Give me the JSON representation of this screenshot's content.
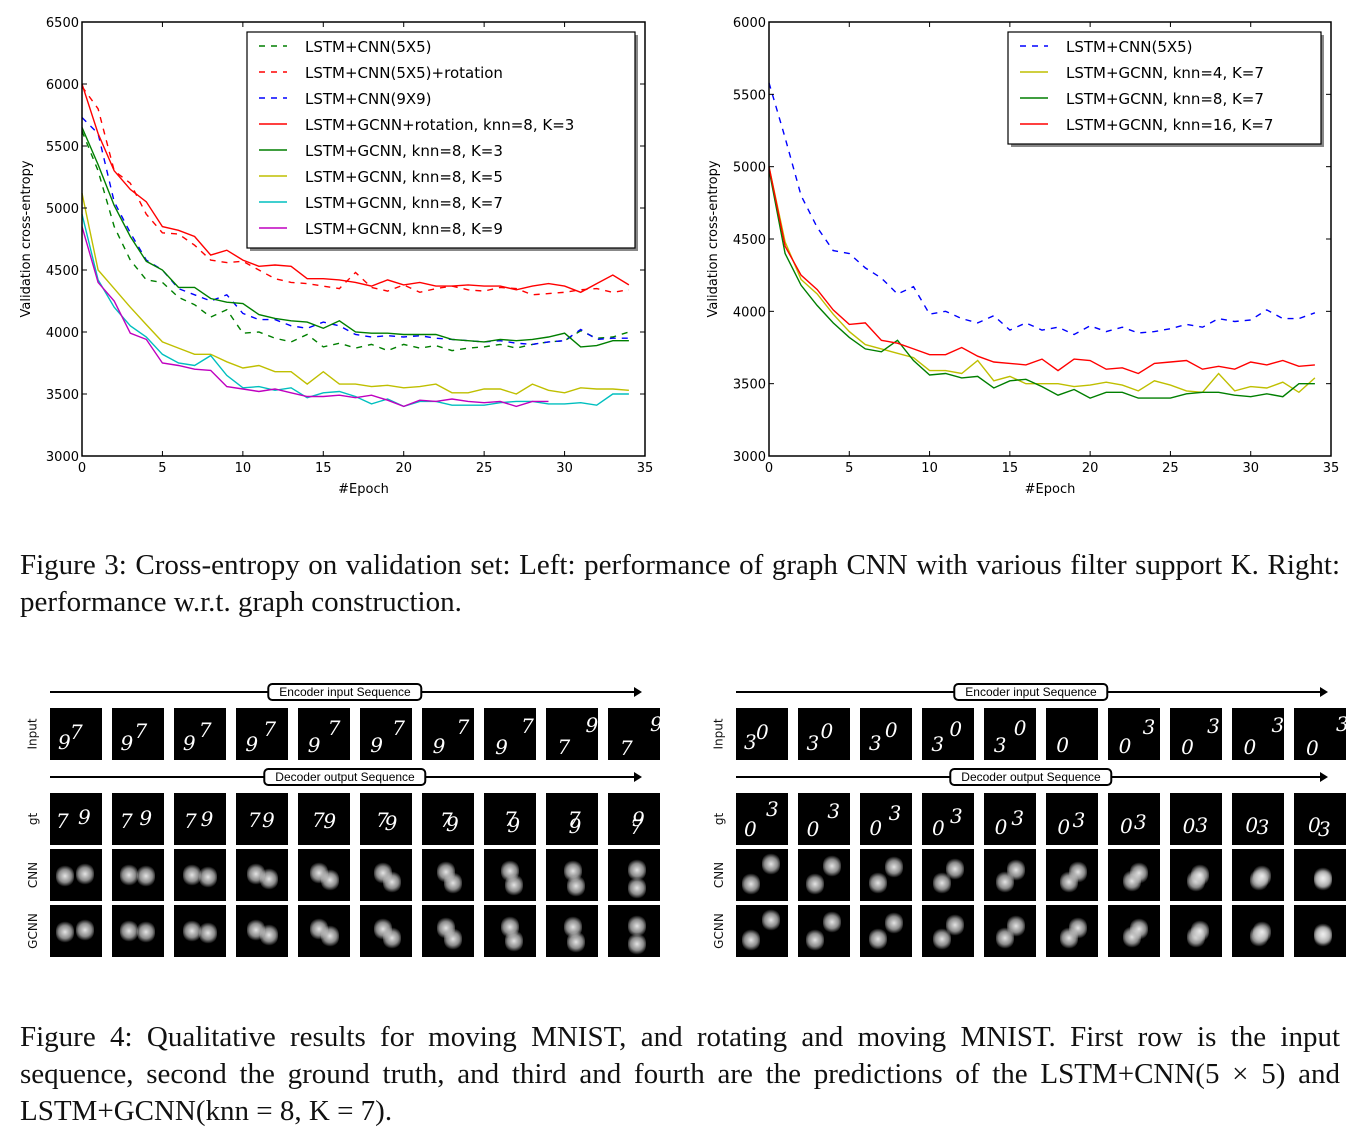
{
  "chart_data": [
    {
      "type": "line",
      "title": "",
      "xlabel": "#Epoch",
      "ylabel": "Validation cross-entropy",
      "xlim": [
        0,
        35
      ],
      "ylim": [
        3000,
        6500
      ],
      "xticks": [
        0,
        5,
        10,
        15,
        20,
        25,
        30,
        35
      ],
      "yticks": [
        3000,
        3500,
        4000,
        4500,
        5000,
        5500,
        6000,
        6500
      ],
      "grid": false,
      "legend_position": "top-right",
      "series": [
        {
          "name": "LSTM+CNN(5X5)",
          "color": "#007f00",
          "dash": true,
          "x": [
            0,
            1,
            2,
            3,
            4,
            5,
            6,
            7,
            8,
            9,
            10,
            11,
            12,
            13,
            14,
            15,
            16,
            17,
            18,
            19,
            20,
            21,
            22,
            23,
            24,
            25,
            26,
            27,
            28,
            29,
            30,
            31,
            32,
            33,
            34
          ],
          "y": [
            5620,
            5300,
            4850,
            4580,
            4420,
            4400,
            4280,
            4220,
            4120,
            4180,
            3990,
            4000,
            3950,
            3920,
            3980,
            3880,
            3910,
            3870,
            3900,
            3850,
            3900,
            3870,
            3890,
            3850,
            3870,
            3880,
            3900,
            3870,
            3900,
            3920,
            3930,
            4010,
            3950,
            3960,
            4000
          ]
        },
        {
          "name": "LSTM+CNN(5X5)+rotation",
          "color": "#ff0000",
          "dash": true,
          "x": [
            0,
            1,
            2,
            3,
            4,
            5,
            6,
            7,
            8,
            9,
            10,
            11,
            12,
            13,
            14,
            15,
            16,
            17,
            18,
            19,
            20,
            21,
            22,
            23,
            24,
            25,
            26,
            27,
            28,
            29,
            30,
            31,
            32,
            33,
            34
          ],
          "y": [
            5980,
            5800,
            5300,
            5200,
            4950,
            4800,
            4790,
            4700,
            4580,
            4560,
            4570,
            4500,
            4430,
            4400,
            4390,
            4370,
            4350,
            4480,
            4360,
            4330,
            4380,
            4320,
            4350,
            4370,
            4340,
            4330,
            4360,
            4350,
            4300,
            4310,
            4320,
            4340,
            4350,
            4320,
            4340
          ]
        },
        {
          "name": "LSTM+CNN(9X9)",
          "color": "#0000ff",
          "dash": true,
          "x": [
            0,
            1,
            2,
            3,
            4,
            5,
            6,
            7,
            8,
            9,
            10,
            11,
            12,
            13,
            14,
            15,
            16,
            17,
            18,
            19,
            20,
            21,
            22,
            23,
            24,
            25,
            26,
            27,
            28,
            29,
            30,
            31,
            32,
            33,
            34
          ],
          "y": [
            5730,
            5600,
            5050,
            4800,
            4580,
            4500,
            4350,
            4300,
            4250,
            4300,
            4150,
            4100,
            4100,
            4050,
            4030,
            4080,
            4050,
            3980,
            3960,
            3970,
            3960,
            3970,
            3950,
            3940,
            3930,
            3920,
            3930,
            3910,
            3900,
            3920,
            3930,
            4020,
            3940,
            3950,
            3950
          ]
        },
        {
          "name": "LSTM+GCNN+rotation, knn=8, K=3",
          "color": "#ff0000",
          "dash": false,
          "x": [
            0,
            1,
            2,
            3,
            4,
            5,
            6,
            7,
            8,
            9,
            10,
            11,
            12,
            13,
            14,
            15,
            16,
            17,
            18,
            19,
            20,
            21,
            22,
            23,
            24,
            25,
            26,
            27,
            28,
            29,
            30,
            31,
            32,
            33,
            34
          ],
          "y": [
            6000,
            5600,
            5300,
            5150,
            5050,
            4850,
            4820,
            4770,
            4620,
            4660,
            4580,
            4530,
            4540,
            4530,
            4430,
            4430,
            4420,
            4400,
            4370,
            4420,
            4380,
            4400,
            4370,
            4370,
            4380,
            4370,
            4370,
            4340,
            4370,
            4390,
            4370,
            4320,
            4390,
            4460,
            4380
          ]
        },
        {
          "name": "LSTM+GCNN, knn=8, K=3",
          "color": "#007f00",
          "dash": false,
          "x": [
            0,
            1,
            2,
            3,
            4,
            5,
            6,
            7,
            8,
            9,
            10,
            11,
            12,
            13,
            14,
            15,
            16,
            17,
            18,
            19,
            20,
            21,
            22,
            23,
            24,
            25,
            26,
            27,
            28,
            29,
            30,
            31,
            32,
            33,
            34
          ],
          "y": [
            5650,
            5350,
            5020,
            4770,
            4570,
            4500,
            4360,
            4360,
            4270,
            4240,
            4230,
            4140,
            4110,
            4090,
            4080,
            4030,
            4090,
            4000,
            3990,
            3990,
            3980,
            3980,
            3980,
            3940,
            3930,
            3920,
            3940,
            3930,
            3940,
            3960,
            3990,
            3880,
            3890,
            3930,
            3930
          ]
        },
        {
          "name": "LSTM+GCNN, knn=8, K=5",
          "color": "#bfbf00",
          "dash": false,
          "x": [
            0,
            1,
            2,
            3,
            4,
            5,
            6,
            7,
            8,
            9,
            10,
            11,
            12,
            13,
            14,
            15,
            16,
            17,
            18,
            19,
            20,
            21,
            22,
            23,
            24,
            25,
            26,
            27,
            28,
            29,
            30,
            31,
            32,
            33,
            34
          ],
          "y": [
            5120,
            4500,
            4350,
            4200,
            4060,
            3920,
            3870,
            3820,
            3820,
            3760,
            3710,
            3730,
            3680,
            3680,
            3580,
            3680,
            3580,
            3580,
            3560,
            3570,
            3550,
            3560,
            3580,
            3510,
            3510,
            3540,
            3540,
            3500,
            3580,
            3530,
            3510,
            3550,
            3540,
            3540,
            3530
          ]
        },
        {
          "name": "LSTM+GCNN, knn=8, K=7",
          "color": "#00bfbf",
          "dash": false,
          "x": [
            0,
            1,
            2,
            3,
            4,
            5,
            6,
            7,
            8,
            9,
            10,
            11,
            12,
            13,
            14,
            15,
            16,
            17,
            18,
            19,
            20,
            21,
            22,
            23,
            24,
            25,
            26,
            27,
            28,
            29,
            30,
            31,
            32,
            33,
            34
          ],
          "y": [
            4950,
            4420,
            4200,
            4050,
            3960,
            3820,
            3750,
            3730,
            3810,
            3650,
            3550,
            3560,
            3530,
            3550,
            3470,
            3510,
            3520,
            3480,
            3420,
            3460,
            3400,
            3440,
            3440,
            3410,
            3410,
            3410,
            3430,
            3440,
            3440,
            3420,
            3420,
            3430,
            3410,
            3500,
            3500
          ]
        },
        {
          "name": "LSTM+GCNN, knn=8, K=9",
          "color": "#bf00bf",
          "dash": false,
          "x": [
            0,
            1,
            2,
            3,
            4,
            5,
            6,
            7,
            8,
            9,
            10,
            11,
            12,
            13,
            14,
            15,
            16,
            17,
            18,
            19,
            20,
            21,
            22,
            23,
            24,
            25,
            26,
            27,
            28,
            29
          ],
          "y": [
            4850,
            4400,
            4250,
            3990,
            3940,
            3750,
            3730,
            3700,
            3690,
            3560,
            3540,
            3520,
            3540,
            3510,
            3480,
            3480,
            3490,
            3470,
            3490,
            3450,
            3400,
            3450,
            3440,
            3460,
            3440,
            3430,
            3440,
            3400,
            3440,
            3440
          ]
        }
      ]
    },
    {
      "type": "line",
      "title": "",
      "xlabel": "#Epoch",
      "ylabel": "Validation cross-entropy",
      "xlim": [
        0,
        35
      ],
      "ylim": [
        3000,
        6000
      ],
      "xticks": [
        0,
        5,
        10,
        15,
        20,
        25,
        30,
        35
      ],
      "yticks": [
        3000,
        3500,
        4000,
        4500,
        5000,
        5500,
        6000
      ],
      "grid": false,
      "legend_position": "top-right",
      "series": [
        {
          "name": "LSTM+CNN(5X5)",
          "color": "#0000ff",
          "dash": true,
          "x": [
            0,
            1,
            2,
            3,
            4,
            5,
            6,
            7,
            8,
            9,
            10,
            11,
            12,
            13,
            14,
            15,
            16,
            17,
            18,
            19,
            20,
            21,
            22,
            23,
            24,
            25,
            26,
            27,
            28,
            29,
            30,
            31,
            32,
            33,
            34
          ],
          "y": [
            5580,
            5200,
            4800,
            4580,
            4420,
            4400,
            4300,
            4230,
            4120,
            4170,
            3980,
            4000,
            3950,
            3920,
            3970,
            3870,
            3920,
            3870,
            3890,
            3840,
            3900,
            3860,
            3890,
            3850,
            3860,
            3880,
            3910,
            3890,
            3950,
            3930,
            3940,
            4010,
            3950,
            3950,
            3990
          ]
        },
        {
          "name": "LSTM+GCNN, knn=4, K=7",
          "color": "#bfbf00",
          "dash": false,
          "x": [
            0,
            1,
            2,
            3,
            4,
            5,
            6,
            7,
            8,
            9,
            10,
            11,
            12,
            13,
            14,
            15,
            16,
            17,
            18,
            19,
            20,
            21,
            22,
            23,
            24,
            25,
            26,
            27,
            28,
            29,
            30,
            31,
            32,
            33,
            34
          ],
          "y": [
            5000,
            4480,
            4220,
            4120,
            3980,
            3860,
            3770,
            3740,
            3710,
            3680,
            3590,
            3590,
            3570,
            3660,
            3520,
            3550,
            3500,
            3500,
            3500,
            3480,
            3490,
            3510,
            3490,
            3450,
            3520,
            3490,
            3450,
            3440,
            3570,
            3450,
            3480,
            3470,
            3510,
            3440,
            3540
          ]
        },
        {
          "name": "LSTM+GCNN, knn=8, K=7",
          "color": "#007f00",
          "dash": false,
          "x": [
            0,
            1,
            2,
            3,
            4,
            5,
            6,
            7,
            8,
            9,
            10,
            11,
            12,
            13,
            14,
            15,
            16,
            17,
            18,
            19,
            20,
            21,
            22,
            23,
            24,
            25,
            26,
            27,
            28,
            29,
            30,
            31,
            32,
            33,
            34
          ],
          "y": [
            4980,
            4400,
            4180,
            4040,
            3920,
            3820,
            3740,
            3720,
            3800,
            3660,
            3560,
            3570,
            3540,
            3550,
            3470,
            3520,
            3530,
            3480,
            3420,
            3460,
            3400,
            3440,
            3440,
            3400,
            3400,
            3400,
            3430,
            3440,
            3440,
            3420,
            3410,
            3430,
            3410,
            3500,
            3500
          ]
        },
        {
          "name": "LSTM+GCNN, knn=16, K=7",
          "color": "#ff0000",
          "dash": false,
          "x": [
            0,
            1,
            2,
            3,
            4,
            5,
            6,
            7,
            8,
            9,
            10,
            11,
            12,
            13,
            14,
            15,
            16,
            17,
            18,
            19,
            20,
            21,
            22,
            23,
            24,
            25,
            26,
            27,
            28,
            29,
            30,
            31,
            32,
            33,
            34
          ],
          "y": [
            5000,
            4450,
            4250,
            4150,
            4010,
            3910,
            3920,
            3800,
            3780,
            3740,
            3700,
            3700,
            3750,
            3690,
            3650,
            3640,
            3630,
            3670,
            3590,
            3670,
            3660,
            3600,
            3610,
            3570,
            3640,
            3650,
            3660,
            3600,
            3620,
            3600,
            3650,
            3630,
            3660,
            3620,
            3630
          ]
        }
      ]
    }
  ],
  "figure3": {
    "caption": "Figure 3: Cross-entropy on validation set: Left: performance of graph CNN with various filter support K. Right: performance w.r.t. graph construction."
  },
  "figure4": {
    "panels": [
      {
        "encoder_label": "Encoder input Sequence",
        "decoder_label": "Decoder output Sequence",
        "row_labels": [
          "Input",
          "gt",
          "CNN",
          "GCNN"
        ],
        "input_frames": [
          "97",
          "97",
          "97",
          "97",
          "97",
          "97",
          "97",
          "97",
          "79",
          "79"
        ],
        "gt_frames": [
          "79",
          "79",
          "79",
          "79",
          "79",
          "79",
          "79",
          "79",
          "79",
          "97"
        ]
      },
      {
        "encoder_label": "Encoder input Sequence",
        "decoder_label": "Decoder output Sequence",
        "row_labels": [
          "Input",
          "gt",
          "CNN",
          "GCNN"
        ],
        "input_frames": [
          "30",
          "30",
          "30",
          "30",
          "30",
          "0",
          "03",
          "03",
          "03",
          "03"
        ],
        "gt_frames": [
          "03",
          "03",
          "03",
          "03",
          "03",
          "03",
          "03",
          "03",
          "03",
          "03"
        ]
      }
    ],
    "caption": "Figure 4: Qualitative results for moving MNIST, and rotating and moving MNIST. First row is the input sequence, second the ground truth, and third and fourth are the predictions of the LSTM+CNN(5 × 5) and LSTM+GCNN(knn = 8, K = 7)."
  }
}
